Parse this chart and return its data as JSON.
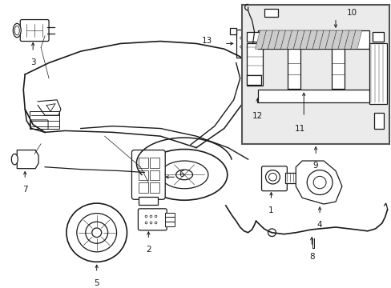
{
  "bg_color": "#ffffff",
  "inset_bg": "#eeeeee",
  "line_color": "#1a1a1a",
  "label_color": "#000000",
  "lw": 0.9
}
